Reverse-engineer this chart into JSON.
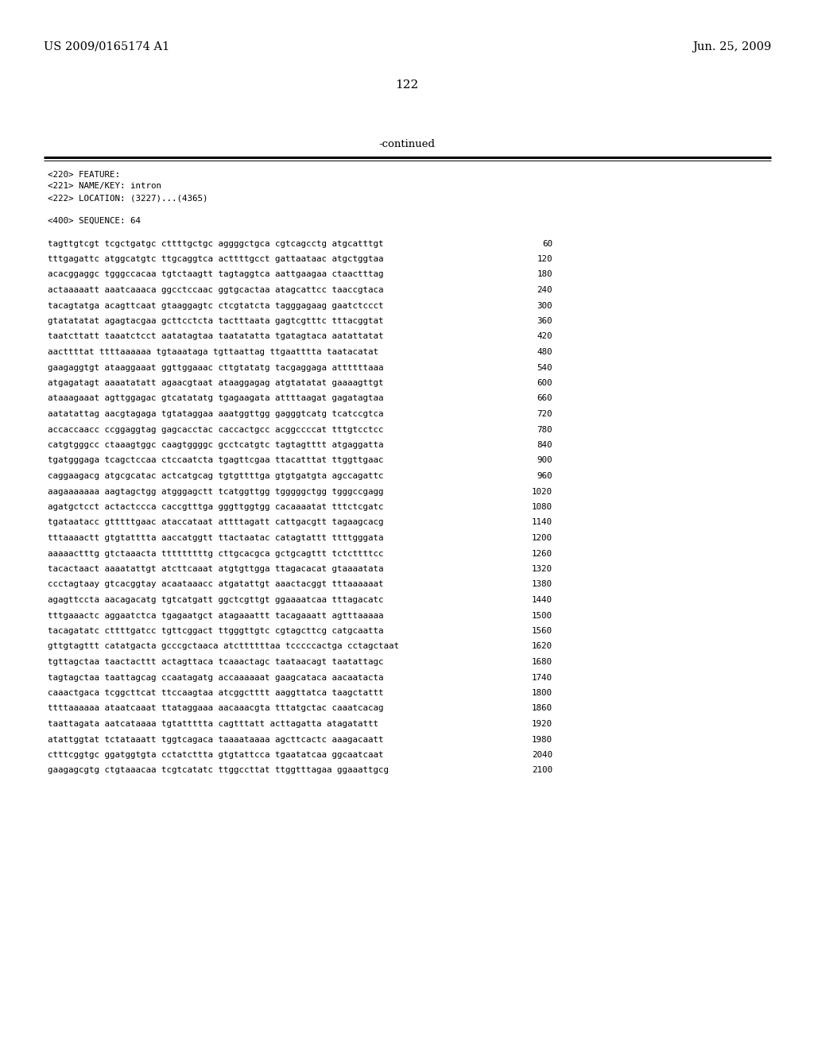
{
  "patent_number": "US 2009/0165174 A1",
  "date": "Jun. 25, 2009",
  "page_number": "122",
  "continued_label": "-continued",
  "feature_lines": [
    "<220> FEATURE:",
    "<221> NAME/KEY: intron",
    "<222> LOCATION: (3227)...(4365)",
    "",
    "<400> SEQUENCE: 64"
  ],
  "sequence_lines": [
    [
      "tagttgtcgt tcgctgatgc cttttgctgc aggggctgca cgtcagcctg atgcatttgt",
      "60"
    ],
    [
      "tttgagattc atggcatgtc ttgcaggtca acttttgcct gattaataac atgctggtaa",
      "120"
    ],
    [
      "acacggaggc tgggccacaa tgtctaagtt tagtaggtca aattgaagaa ctaactttag",
      "180"
    ],
    [
      "actaaaaatt aaatcaaaca ggcctccaac ggtgcactaa atagcattcc taaccgtaca",
      "240"
    ],
    [
      "tacagtatga acagttcaat gtaaggagtc ctcgtatcta tagggagaag gaatctccct",
      "300"
    ],
    [
      "gtatatatat agagtacgaa gcttcctcta tactttaata gagtcgtttc tttacggtat",
      "360"
    ],
    [
      "taatcttatt taaatctcct aatatagtaa taatatatta tgatagtaca aatattatat",
      "420"
    ],
    [
      "aacttttat ttttaaaaaa tgtaaataga tgttaattag ttgaatttta taatacatat",
      "480"
    ],
    [
      "gaagaggtgt ataaggaaat ggttggaaac cttgtatatg tacgaggaga attttttaaa",
      "540"
    ],
    [
      "atgagatagt aaaatatatt agaacgtaat ataaggagag atgtatatat gaaaagttgt",
      "600"
    ],
    [
      "ataaagaaat agttggagac gtcatatatg tgagaagata attttaagat gagatagtaa",
      "660"
    ],
    [
      "aatatattag aacgtagaga tgtataggaa aaatggttgg gagggtcatg tcatccgtca",
      "720"
    ],
    [
      "accaccaacc ccggaggtag gagcacctac caccactgcc acggccccat tttgtcctcc",
      "780"
    ],
    [
      "catgtgggcc ctaaagtggc caagtggggc gcctcatgtc tagtagtttt atgaggatta",
      "840"
    ],
    [
      "tgatgggaga tcagctccaa ctccaatcta tgagttcgaa ttacatttat ttggttgaac",
      "900"
    ],
    [
      "caggaagacg atgcgcatac actcatgcag tgtgttttga gtgtgatgta agccagattc",
      "960"
    ],
    [
      "aagaaaaaaa aagtagctgg atgggagctt tcatggttgg tgggggctgg tgggccgagg",
      "1020"
    ],
    [
      "agatgctcct actactccca caccgtttga gggttggtgg cacaaaatat tttctcgatc",
      "1080"
    ],
    [
      "tgataatacc gtttttgaac ataccataat attttagatt cattgacgtt tagaagcacg",
      "1140"
    ],
    [
      "tttaaaactt gtgtatttta aaccatggtt ttactaatac catagtattt ttttgggata",
      "1200"
    ],
    [
      "aaaaactttg gtctaaacta tttttttttg cttgcacgca gctgcagttt tctcttttcc",
      "1260"
    ],
    [
      "tacactaact aaaatattgt atcttcaaat atgtgttgga ttagacacat gtaaaatata",
      "1320"
    ],
    [
      "ccctagtaay gtcacggtay acaataaacc atgatattgt aaactacggt tttaaaaaat",
      "1380"
    ],
    [
      "agagttccta aacagacatg tgtcatgatt ggctcgttgt ggaaaatcaa tttagacatc",
      "1440"
    ],
    [
      "tttgaaactc aggaatctca tgagaatgct atagaaattt tacagaaatt agtttaaaaa",
      "1500"
    ],
    [
      "tacagatatc cttttgatcc tgttcggact ttgggttgtc cgtagcttcg catgcaatta",
      "1560"
    ],
    [
      "gttgtagttt catatgacta gcccgctaaca atcttttttaa tcccccactga cctagctaat",
      "1620"
    ],
    [
      "tgttagctaa taactacttt actagttaca tcaaactagc taataacagt taatattagc",
      "1680"
    ],
    [
      "tagtagctaa taattagcag ccaatagatg accaaaaaat gaagcataca aacaatacta",
      "1740"
    ],
    [
      "caaactgaca tcggcttcat ttccaagtaa atcggctttt aaggttatca taagctattt",
      "1800"
    ],
    [
      "ttttaaaaaa ataatcaaat ttataggaaa aacaaacgta tttatgctac caaatcacag",
      "1860"
    ],
    [
      "taattagata aatcataaaa tgtattttta cagtttatt acttagatta atagatattt",
      "1920"
    ],
    [
      "atattggtat tctataaatt tggtcagaca taaaataaaa agcttcactc aaagacaatt",
      "1980"
    ],
    [
      "ctttcggtgc ggatggtgta cctatcttta gtgtattcca tgaatatcaa ggcaatcaat",
      "2040"
    ],
    [
      "gaagagcgtg ctgtaaacaa tcgtcatatc ttggccttat ttggtttagaa ggaaattgcg",
      "2100"
    ]
  ],
  "bg_color": "#ffffff",
  "text_color": "#000000",
  "line_color": "#000000"
}
